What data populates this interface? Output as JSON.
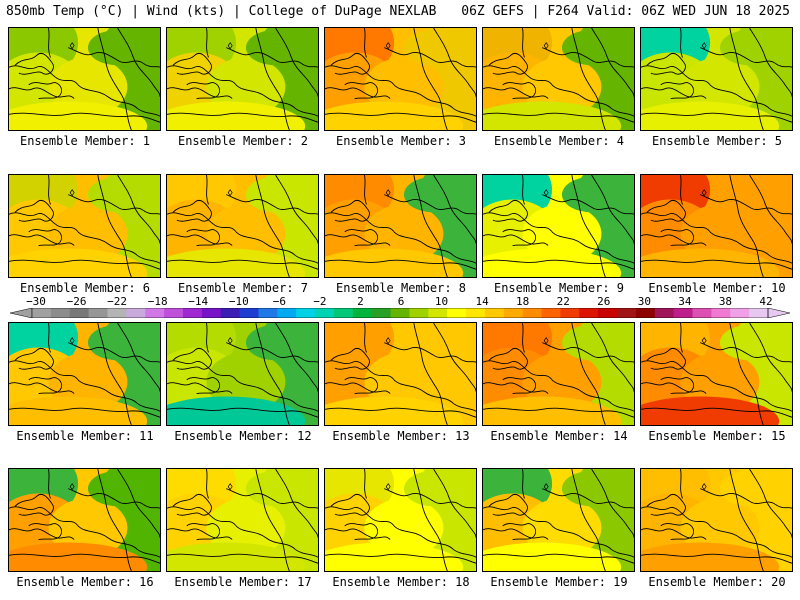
{
  "header": {
    "left_title": "850mb Temp (°C) | Wind (kts) | College of DuPage NEXLAB",
    "right_title": "06Z GEFS | F264 Valid: 06Z WED JUN 18 2025"
  },
  "panels": [
    {
      "label": "Ensemble Member: 1",
      "colors": [
        "#8cc800",
        "#64b400",
        "#d2e600",
        "#e6e600",
        "#f0f000"
      ]
    },
    {
      "label": "Ensemble Member: 2",
      "colors": [
        "#a0d200",
        "#64b400",
        "#f0d200",
        "#d2e600",
        "#f0f000"
      ]
    },
    {
      "label": "Ensemble Member: 3",
      "colors": [
        "#ff7800",
        "#f0c800",
        "#ffa000",
        "#ffbe00",
        "#ffd200"
      ]
    },
    {
      "label": "Ensemble Member: 4",
      "colors": [
        "#f0b400",
        "#64b400",
        "#ffb400",
        "#ffc800",
        "#d2e600"
      ]
    },
    {
      "label": "Ensemble Member: 5",
      "colors": [
        "#00d2a0",
        "#a0d200",
        "#c8e600",
        "#d2e600",
        "#e6f000"
      ]
    },
    {
      "label": "Ensemble Member: 6",
      "colors": [
        "#d2d200",
        "#b4dc00",
        "#ffc800",
        "#ffbe00",
        "#ffd200"
      ]
    },
    {
      "label": "Ensemble Member: 7",
      "colors": [
        "#ffc800",
        "#c8e600",
        "#ffb400",
        "#ffbe00",
        "#e6e600"
      ]
    },
    {
      "label": "Ensemble Member: 8",
      "colors": [
        "#ff8c00",
        "#3cb43c",
        "#ffa000",
        "#ffb400",
        "#ffc800"
      ]
    },
    {
      "label": "Ensemble Member: 9",
      "colors": [
        "#00d2a0",
        "#3cb43c",
        "#e6f000",
        "#ffff00",
        "#ffff00"
      ]
    },
    {
      "label": "Ensemble Member: 10",
      "colors": [
        "#f03c00",
        "#ffa000",
        "#ff8c00",
        "#ffa000",
        "#ffb400"
      ]
    },
    {
      "label": "Ensemble Member: 11",
      "colors": [
        "#00d2a0",
        "#3cb43c",
        "#ffc800",
        "#ffb400",
        "#ffbe00"
      ]
    },
    {
      "label": "Ensemble Member: 12",
      "colors": [
        "#b4dc00",
        "#3cb43c",
        "#c8e600",
        "#a0d200",
        "#00c896"
      ]
    },
    {
      "label": "Ensemble Member: 13",
      "colors": [
        "#ffa000",
        "#ffc800",
        "#ffa000",
        "#ffc800",
        "#ffd200"
      ]
    },
    {
      "label": "Ensemble Member: 14",
      "colors": [
        "#ff7800",
        "#b4dc00",
        "#ff8c00",
        "#ffa000",
        "#ffbe00"
      ]
    },
    {
      "label": "Ensemble Member: 15",
      "colors": [
        "#ffb400",
        "#c8e600",
        "#ff8c00",
        "#ffa000",
        "#f03c00"
      ]
    },
    {
      "label": "Ensemble Member: 16",
      "colors": [
        "#3cb43c",
        "#50b400",
        "#ffa000",
        "#ffc800",
        "#ff8c00"
      ]
    },
    {
      "label": "Ensemble Member: 17",
      "colors": [
        "#ffdc00",
        "#c8e600",
        "#ffd200",
        "#e6f000",
        "#d2e600"
      ]
    },
    {
      "label": "Ensemble Member: 18",
      "colors": [
        "#e6e600",
        "#c8e600",
        "#ffd200",
        "#ffff00",
        "#ffff00"
      ]
    },
    {
      "label": "Ensemble Member: 19",
      "colors": [
        "#3cb43c",
        "#8cc800",
        "#ffbe00",
        "#ffdc00",
        "#ffff00"
      ]
    },
    {
      "label": "Ensemble Member: 20",
      "colors": [
        "#ffbe00",
        "#ffd200",
        "#ffb400",
        "#ffc800",
        "#ffa000"
      ]
    }
  ],
  "colorbar": {
    "ticks": [
      "−30",
      "−26",
      "−22",
      "−18",
      "−14",
      "−10",
      "−6",
      "−2",
      "2",
      "6",
      "10",
      "14",
      "18",
      "22",
      "26",
      "30",
      "34",
      "38",
      "42"
    ],
    "colors": [
      "#a0a0a0",
      "#8c8c8c",
      "#787878",
      "#969696",
      "#b4b4b4",
      "#c8aadc",
      "#d278e6",
      "#be50dc",
      "#a028d2",
      "#7814c8",
      "#3c1eb4",
      "#1e3cd2",
      "#1e78e6",
      "#00aaf0",
      "#00d2e6",
      "#00d2b4",
      "#00c878",
      "#00b43c",
      "#28a028",
      "#64b400",
      "#a0d200",
      "#d2e600",
      "#ffff00",
      "#ffe600",
      "#ffc800",
      "#ffaa00",
      "#ff8c00",
      "#ff6400",
      "#f03c00",
      "#dc1400",
      "#c80000",
      "#a01414",
      "#8c0000",
      "#a0145a",
      "#be1e8c",
      "#dc50b4",
      "#f07ad2",
      "#f0a0e6",
      "#e6c8f0"
    ]
  }
}
